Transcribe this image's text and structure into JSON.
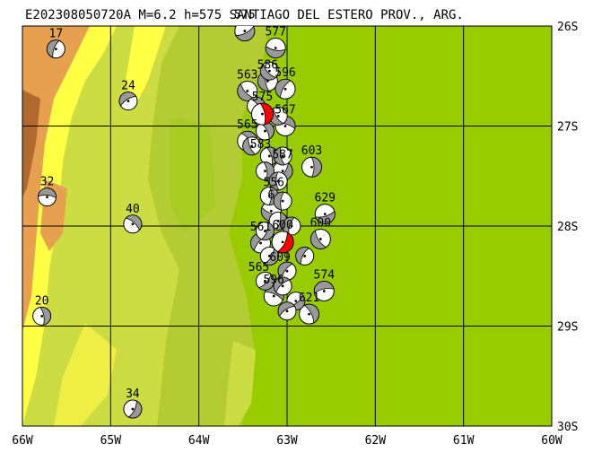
{
  "title": "E202308050720A M=6.2 h=575 SANTIAGO DEL ESTERO PROV., ARG.",
  "map": {
    "lon_range": [
      -66,
      -60
    ],
    "lat_range": [
      -30,
      -26
    ],
    "lon_ticks": [
      "66W",
      "65W",
      "64W",
      "63W",
      "62W",
      "61W",
      "60W"
    ],
    "lat_ticks": [
      "26S",
      "27S",
      "28S",
      "29S",
      "30S"
    ],
    "grid": true,
    "colors": {
      "lowland": "#99cc00",
      "plain": "#b3cc33",
      "hill": "#ccdd44",
      "yellow": "#ffff44",
      "orange": "#e6a050",
      "brown": "#b06a30",
      "gridline": "#000000",
      "event_highlight": "#ff0000",
      "neighbor_fill": "#999999"
    }
  },
  "events": [
    {
      "label": "17",
      "lon": -65.62,
      "lat": -26.23,
      "main": false
    },
    {
      "label": "24",
      "lon": -64.8,
      "lat": -26.75,
      "main": false
    },
    {
      "label": "32",
      "lon": -65.72,
      "lat": -27.71,
      "main": false
    },
    {
      "label": "40",
      "lon": -64.75,
      "lat": -27.98,
      "main": false
    },
    {
      "label": "20",
      "lon": -65.78,
      "lat": -28.9,
      "main": false
    },
    {
      "label": "34",
      "lon": -64.75,
      "lat": -29.83,
      "main": false
    },
    {
      "label": "575",
      "lon": -63.48,
      "lat": -26.05,
      "main": false
    },
    {
      "label": "577",
      "lon": -63.13,
      "lat": -26.22,
      "main": false
    },
    {
      "label": "563",
      "lon": -63.45,
      "lat": -26.65,
      "main": false
    },
    {
      "label": "586",
      "lon": -63.22,
      "lat": -26.55,
      "main": false
    },
    {
      "label": "596",
      "lon": -63.02,
      "lat": -26.63,
      "main": false
    },
    {
      "label": "575",
      "lon": -63.28,
      "lat": -26.88,
      "main": true
    },
    {
      "label": "567",
      "lon": -63.02,
      "lat": -27.0,
      "main": false
    },
    {
      "label": "565",
      "lon": -63.45,
      "lat": -27.15,
      "main": false
    },
    {
      "label": "603",
      "lon": -62.72,
      "lat": -27.41,
      "main": false
    },
    {
      "label": "587",
      "lon": -63.05,
      "lat": -27.45,
      "main": false
    },
    {
      "label": "629",
      "lon": -62.57,
      "lat": -27.88,
      "main": false
    },
    {
      "label": "6",
      "lon": -63.18,
      "lat": -27.85,
      "main": false
    },
    {
      "label": "600",
      "lon": -62.62,
      "lat": -28.13,
      "main": false
    },
    {
      "label": "600",
      "lon": -63.05,
      "lat": -28.16,
      "main": true
    },
    {
      "label": "561",
      "lon": -63.3,
      "lat": -28.17,
      "main": false
    },
    {
      "label": "574",
      "lon": -62.58,
      "lat": -28.65,
      "main": false
    },
    {
      "label": "596",
      "lon": -63.15,
      "lat": -28.7,
      "main": false
    },
    {
      "label": "621",
      "lon": -62.75,
      "lat": -28.88,
      "main": false
    }
  ],
  "labels_only": [
    {
      "label": "583",
      "lon": -63.3,
      "lat": -27.22
    },
    {
      "label": "556",
      "lon": -63.15,
      "lat": -27.6
    },
    {
      "label": "609",
      "lon": -63.08,
      "lat": -28.35
    },
    {
      "label": "565",
      "lon": -63.32,
      "lat": -28.45
    }
  ]
}
